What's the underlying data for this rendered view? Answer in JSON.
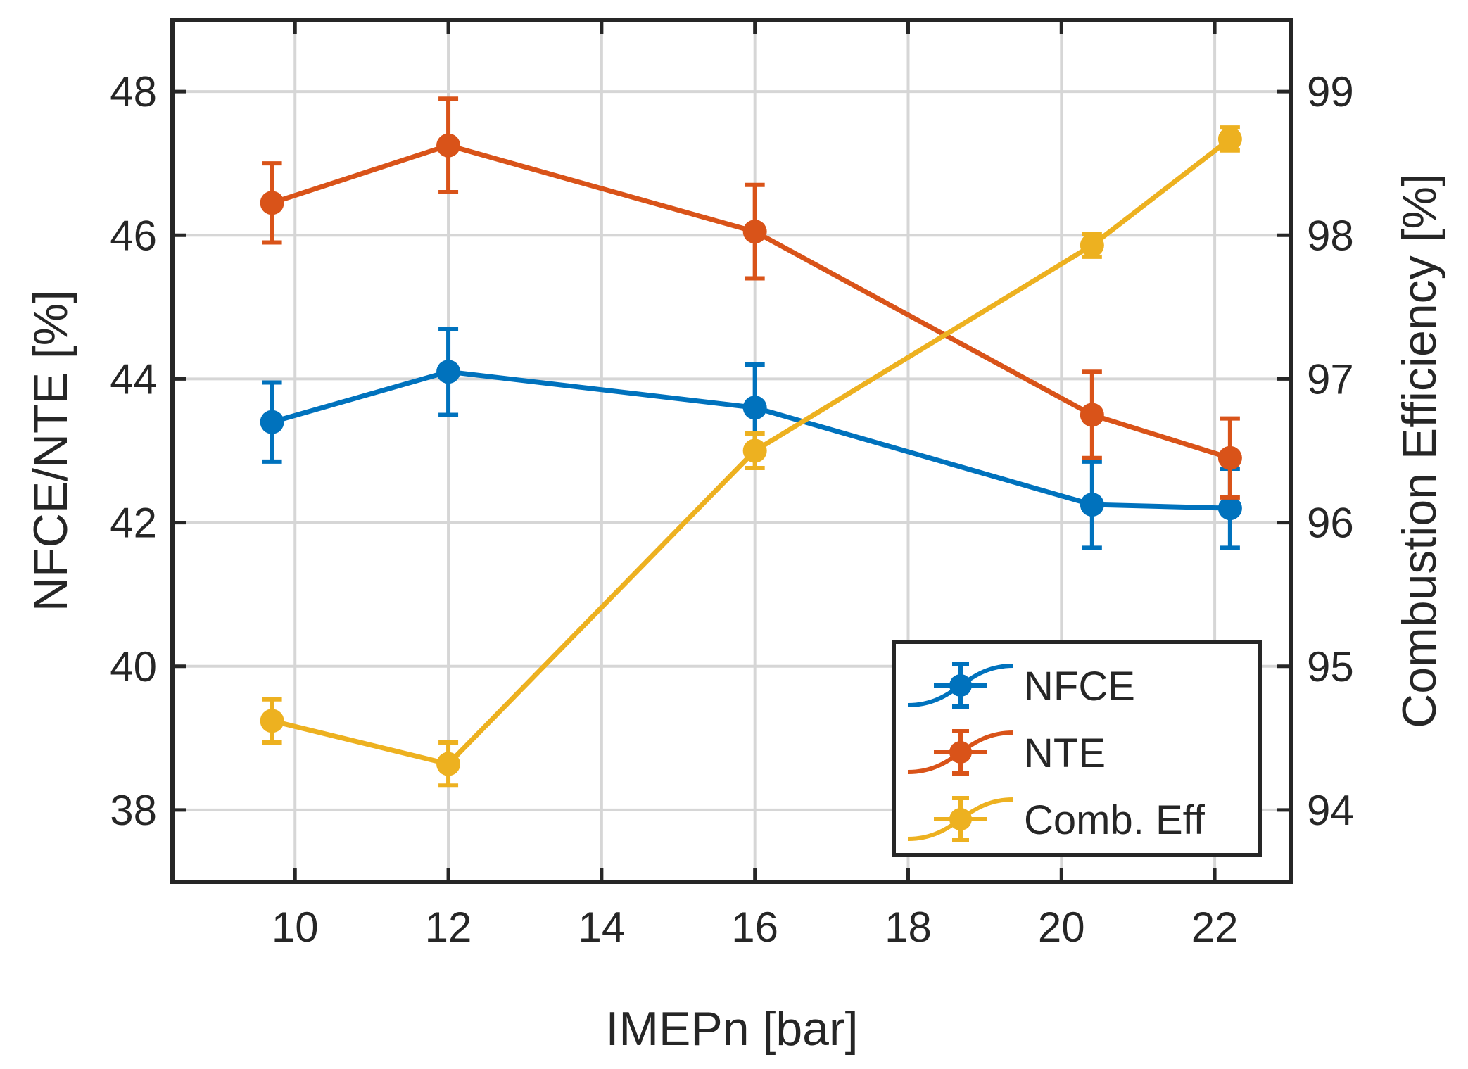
{
  "chart_data": {
    "type": "line",
    "title": "",
    "xlabel": "IMEPn [bar]",
    "ylabel_left": "NFCE/NTE [%]",
    "ylabel_right": "Combustion Efficiency [%]",
    "xlim": [
      8.4,
      23.0
    ],
    "ylim_left": [
      37.0,
      49.0
    ],
    "ylim_right": [
      93.5,
      99.5
    ],
    "xticks": [
      10,
      12,
      14,
      16,
      18,
      20,
      22
    ],
    "yticks_left": [
      38,
      40,
      42,
      44,
      46,
      48
    ],
    "yticks_right": [
      94,
      95,
      96,
      97,
      98,
      99
    ],
    "grid": true,
    "legend_position": "bottom-right",
    "series": [
      {
        "name": "NFCE",
        "axis": "left",
        "color": "#0072BD",
        "x": [
          9.7,
          12.0,
          16.0,
          20.4,
          22.2
        ],
        "y": [
          43.4,
          44.1,
          43.6,
          42.25,
          42.2
        ],
        "err": [
          0.55,
          0.6,
          0.6,
          0.6,
          0.55
        ]
      },
      {
        "name": "NTE",
        "axis": "left",
        "color": "#D95319",
        "x": [
          9.7,
          12.0,
          16.0,
          20.4,
          22.2
        ],
        "y": [
          46.45,
          47.25,
          46.05,
          43.5,
          42.9
        ],
        "err": [
          0.55,
          0.65,
          0.65,
          0.6,
          0.55
        ]
      },
      {
        "name": "Comb. Eff",
        "axis": "right",
        "color": "#EDB120",
        "x": [
          9.7,
          12.0,
          16.0,
          20.4,
          22.2
        ],
        "y": [
          94.62,
          94.32,
          96.5,
          97.93,
          98.67
        ],
        "err": [
          0.15,
          0.15,
          0.12,
          0.08,
          0.08
        ]
      }
    ]
  }
}
